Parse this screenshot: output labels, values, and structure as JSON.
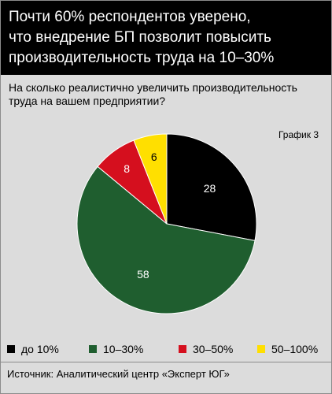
{
  "header": {
    "title_lines": [
      "Почти 60% респондентов уверено,",
      "что внедрение БП позволит повысить",
      "производительность труда на 10–30%"
    ]
  },
  "subtitle_lines": [
    "На сколько реалистично увеличить производительность",
    "труда на вашем предприятии?"
  ],
  "chart_label": "График 3",
  "chart_data": {
    "type": "pie",
    "categories": [
      "до 10%",
      "10–30%",
      "30–50%",
      "50–100%"
    ],
    "values": [
      28,
      58,
      8,
      6
    ],
    "colors": [
      "#000000",
      "#1f5e2f",
      "#d50f1e",
      "#ffdf00"
    ],
    "label_colors": [
      "#ffffff",
      "#ffffff",
      "#ffffff",
      "#000000"
    ],
    "start_angle_deg": 0,
    "direction": "clockwise",
    "legend_position": "bottom"
  },
  "source": "Источник: Аналитический центр «Эксперт ЮГ»"
}
